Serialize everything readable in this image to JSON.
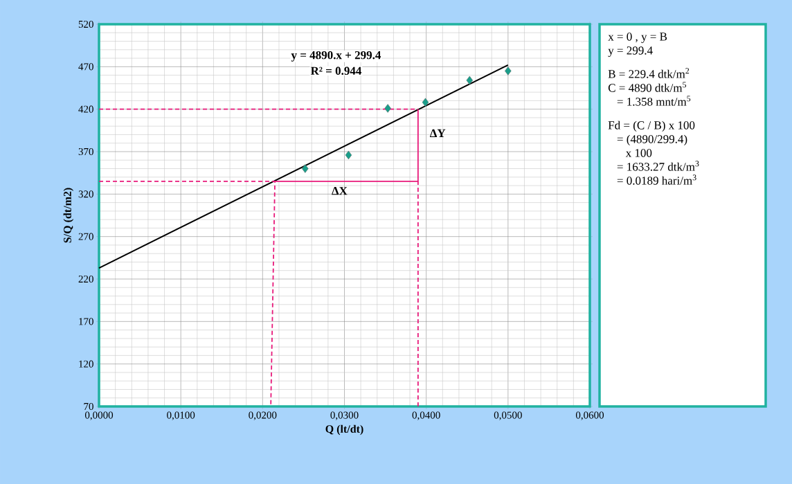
{
  "chart_data": {
    "type": "scatter",
    "xlabel": "Q (lt/dt)",
    "ylabel": "S/Q (dt/m2)",
    "xlim": [
      0,
      0.06
    ],
    "ylim": [
      70,
      520
    ],
    "xticks": [
      {
        "value": 0,
        "label": "0,0000"
      },
      {
        "value": 0.01,
        "label": "0,0100"
      },
      {
        "value": 0.02,
        "label": "0,0200"
      },
      {
        "value": 0.03,
        "label": "0,0300"
      },
      {
        "value": 0.04,
        "label": "0,0400"
      },
      {
        "value": 0.05,
        "label": "0,0500"
      },
      {
        "value": 0.06,
        "label": "0,0600"
      }
    ],
    "yticks": [
      70,
      120,
      170,
      220,
      270,
      320,
      370,
      420,
      470,
      520
    ],
    "grid": true,
    "series": [
      {
        "color": "#1a9e8a",
        "marker": "diamond",
        "x": [
          0.0252,
          0.0305,
          0.0353,
          0.0399,
          0.0453,
          0.05
        ],
        "values": [
          350,
          366,
          421,
          428,
          454,
          465
        ]
      },
      {
        "type": "line",
        "color": "#000000",
        "marker": "none",
        "line_style": "solid",
        "x": [
          0,
          0.05
        ],
        "values": [
          233,
          472
        ]
      },
      {
        "type": "line",
        "color": "#e8197a",
        "marker": "none",
        "line_style": "dashed",
        "x": [
          0,
          0.039
        ],
        "values": [
          420,
          420
        ]
      },
      {
        "type": "line",
        "color": "#e8197a",
        "marker": "none",
        "line_style": "solid",
        "x": [
          0.039,
          0.039,
          0.0215
        ],
        "values": [
          420,
          335,
          335
        ]
      },
      {
        "type": "line",
        "color": "#e8197a",
        "marker": "none",
        "line_style": "dashed",
        "x": [
          0,
          0.0215,
          0.021
        ],
        "values": [
          335,
          335,
          70
        ]
      },
      {
        "type": "line",
        "color": "#e8197a",
        "marker": "none",
        "line_style": "dashed",
        "x": [
          0.039,
          0.039
        ],
        "values": [
          70,
          335
        ]
      }
    ],
    "annotations": [
      "y = 4890.x + 299.4",
      "R² = 0.944",
      "ΔY",
      "ΔX",
      "x = 0 , y = B",
      "y = 299.4",
      "B = 229.4 dtk/m$^{2}$",
      "C = 4890 dtk/m$^{5}$",
      "   = 1.358 mnt/m$^{5}$",
      "Fd = (C / B) x 100",
      "     = (4890/299.4)",
      "        x 100",
      "     = 1633.27 dtk/m$^{3}$",
      "     = 0.0189 hari/m$^{3}$"
    ]
  }
}
